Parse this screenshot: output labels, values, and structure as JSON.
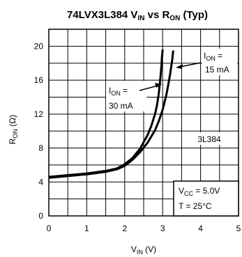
{
  "chart_data": {
    "type": "line",
    "title_main": "74LVX3L384 V",
    "title_sub1": "IN",
    "title_mid": " vs R",
    "title_sub2": "ON",
    "title_end": " (Typ)",
    "xlabel_main": "V",
    "xlabel_sub": "IN",
    "xlabel_unit": " (V)",
    "ylabel_main": "R",
    "ylabel_sub": "ON",
    "ylabel_unit": " (Ω)",
    "xlim": [
      0,
      5
    ],
    "ylim": [
      0,
      22
    ],
    "x_ticks": [
      "0",
      "1",
      "2",
      "3",
      "4",
      "5"
    ],
    "y_ticks": [
      "0",
      "4",
      "8",
      "12",
      "16",
      "20"
    ],
    "grid": true,
    "series": [
      {
        "name": "I_ON = 30 mA",
        "x": [
          0,
          0.5,
          1.0,
          1.5,
          1.8,
          2.0,
          2.2,
          2.4,
          2.6,
          2.7,
          2.8,
          2.85,
          2.9,
          2.93,
          2.95,
          2.97,
          2.98,
          2.99,
          3.0
        ],
        "y": [
          4.6,
          4.8,
          5.0,
          5.3,
          5.6,
          6.1,
          6.8,
          7.9,
          9.5,
          10.6,
          12.0,
          13.0,
          14.5,
          15.8,
          16.7,
          17.8,
          18.6,
          19.1,
          19.6
        ]
      },
      {
        "name": "I_ON = 15 mA",
        "x": [
          0,
          0.5,
          1.0,
          1.5,
          1.8,
          2.0,
          2.2,
          2.4,
          2.6,
          2.8,
          2.9,
          3.0,
          3.05,
          3.1,
          3.15,
          3.2,
          3.25,
          3.28
        ],
        "y": [
          4.5,
          4.7,
          4.9,
          5.2,
          5.5,
          5.9,
          6.6,
          7.5,
          8.6,
          10.1,
          11.2,
          12.5,
          13.4,
          14.3,
          15.5,
          16.8,
          18.3,
          19.5
        ]
      }
    ],
    "annotations": {
      "i15_main": "I",
      "i15_sub": "ON",
      "i15_eq": " =",
      "i15_val": "15 mA",
      "i30_main": "I",
      "i30_sub": "ON",
      "i30_eq": " =",
      "i30_val": "30 mA",
      "part": "3L384",
      "vcc_main": "V",
      "vcc_sub": "CC",
      "vcc_val": " = 5.0V",
      "temp": "T = 25°C"
    }
  }
}
